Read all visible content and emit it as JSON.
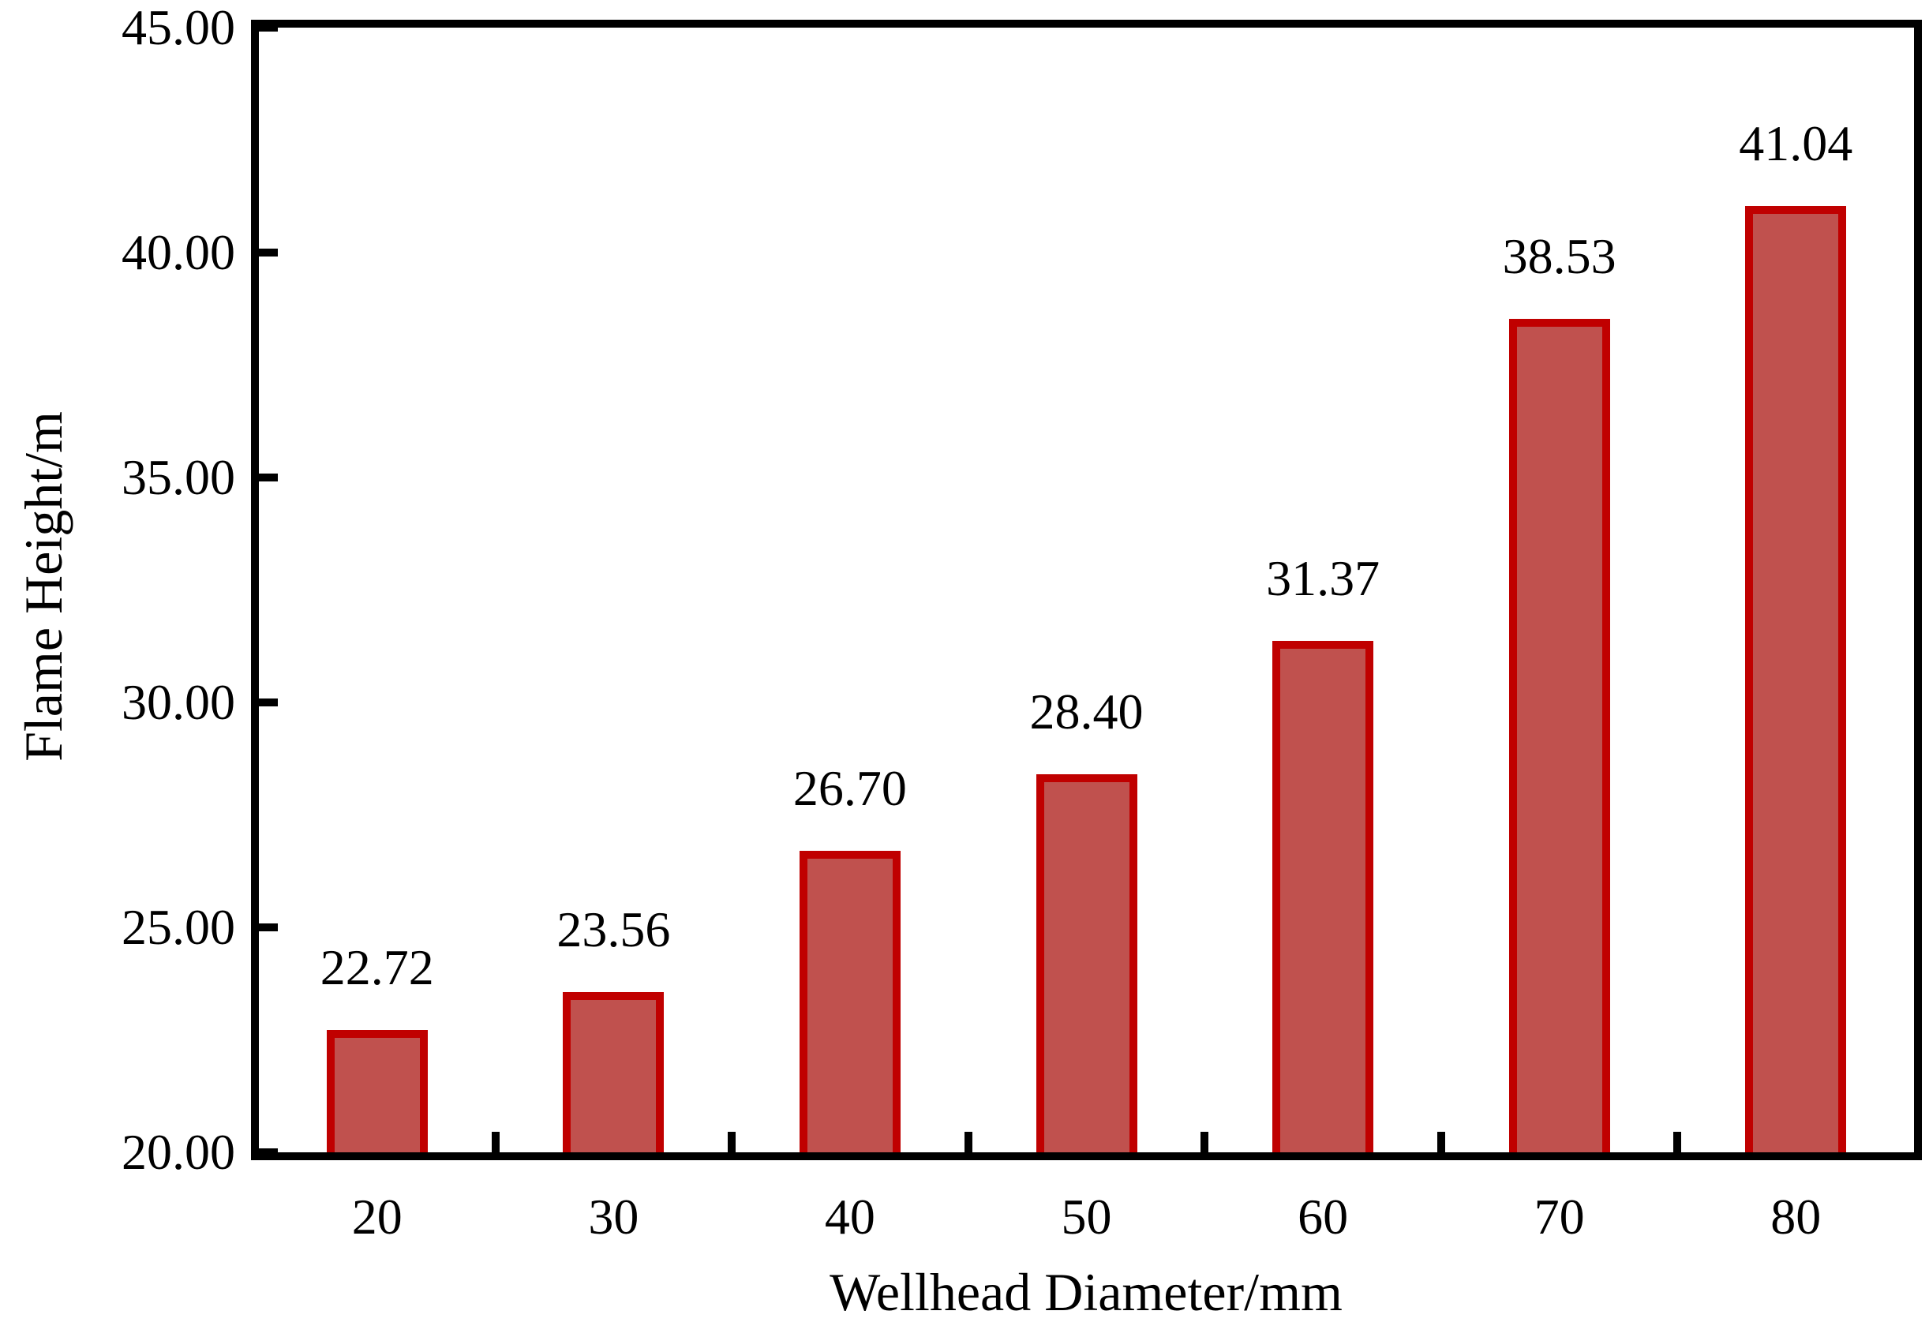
{
  "chart_data": {
    "type": "bar",
    "title": "",
    "categories": [
      "20",
      "30",
      "40",
      "50",
      "60",
      "70",
      "80"
    ],
    "values": [
      22.72,
      23.56,
      26.7,
      28.4,
      31.37,
      38.53,
      41.04
    ],
    "data_labels": [
      "22.72",
      "23.56",
      "26.70",
      "28.40",
      "31.37",
      "38.53",
      "41.04"
    ],
    "xlabel": "Wellhead Diameter/mm",
    "ylabel": "Flame Height/m",
    "ylim": [
      20,
      45
    ],
    "y_tick_step": 5,
    "y_ticks": [
      20,
      25,
      30,
      35,
      40,
      45
    ],
    "y_tick_labels": [
      "20.00",
      "25.00",
      "30.00",
      "35.00",
      "40.00",
      "45.00"
    ],
    "grid": false,
    "legend_position": "none",
    "colors": {
      "bar_fill": "#C0514E",
      "bar_border": "#C00000",
      "axis": "#000000",
      "text": "#000000",
      "background": "#FFFFFF"
    }
  }
}
